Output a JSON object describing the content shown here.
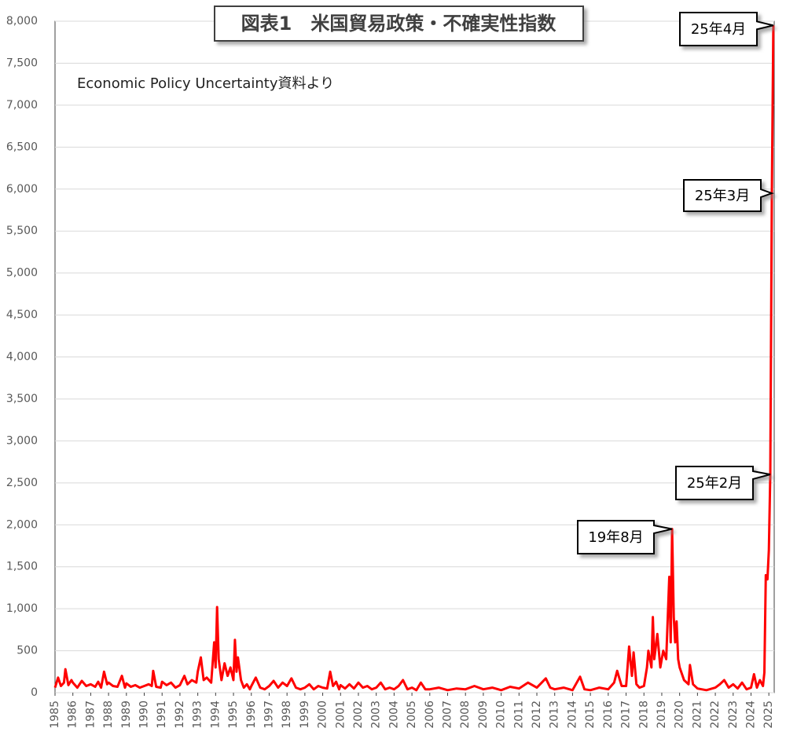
{
  "chart_data": {
    "type": "line",
    "title": "図表1　米国貿易政策・不確実性指数",
    "subtitle": "Economic Policy Uncertainty資料より",
    "xlim": [
      1985,
      2025.3
    ],
    "xticks": [
      1985,
      1986,
      1987,
      1988,
      1989,
      1990,
      1991,
      1992,
      1993,
      1994,
      1995,
      1996,
      1997,
      1998,
      1999,
      2000,
      2001,
      2002,
      2003,
      2004,
      2005,
      2006,
      2007,
      2008,
      2009,
      2010,
      2011,
      2012,
      2013,
      2014,
      2015,
      2016,
      2017,
      2018,
      2019,
      2020,
      2021,
      2022,
      2023,
      2024,
      2025
    ],
    "ylim": [
      0,
      8000
    ],
    "yticks": [
      0,
      500,
      {
        "value": 1000,
        "label": "1,000"
      },
      {
        "value": 1500,
        "label": "1,500"
      },
      {
        "value": 2000,
        "label": "2,000"
      },
      {
        "value": 2500,
        "label": "2,500"
      },
      {
        "value": 3000,
        "label": "3,000"
      },
      {
        "value": 3500,
        "label": "3,500"
      },
      {
        "value": 4000,
        "label": "4,000"
      },
      {
        "value": 4500,
        "label": "4,500"
      },
      {
        "value": 5000,
        "label": "5,000"
      },
      {
        "value": 5500,
        "label": "5,500"
      },
      {
        "value": 6000,
        "label": "6,000"
      },
      {
        "value": 6500,
        "label": "6,500"
      },
      {
        "value": 7000,
        "label": "7,000"
      },
      {
        "value": 7500,
        "label": "7,500"
      },
      {
        "value": 8000,
        "label": "8,000"
      }
    ],
    "grid": true,
    "series": [
      {
        "color": "#ff0000",
        "x": [
          1985.0,
          1985.17,
          1985.33,
          1985.5,
          1985.58,
          1985.75,
          1985.92,
          1986.0,
          1986.25,
          1986.5,
          1986.75,
          1987.0,
          1987.25,
          1987.42,
          1987.58,
          1987.75,
          1987.92,
          1988.0,
          1988.25,
          1988.5,
          1988.75,
          1988.92,
          1989.0,
          1989.25,
          1989.5,
          1989.75,
          1990.0,
          1990.25,
          1990.42,
          1990.5,
          1990.67,
          1990.92,
          1991.0,
          1991.25,
          1991.5,
          1991.75,
          1992.0,
          1992.25,
          1992.42,
          1992.67,
          1992.92,
          1993.0,
          1993.17,
          1993.33,
          1993.5,
          1993.75,
          1993.92,
          1994.0,
          1994.08,
          1994.17,
          1994.33,
          1994.5,
          1994.67,
          1994.83,
          1995.0,
          1995.08,
          1995.17,
          1995.25,
          1995.42,
          1995.58,
          1995.75,
          1995.92,
          1996.0,
          1996.25,
          1996.5,
          1996.75,
          1997.0,
          1997.25,
          1997.5,
          1997.75,
          1998.0,
          1998.25,
          1998.5,
          1998.75,
          1999.0,
          1999.25,
          1999.5,
          1999.75,
          2000.0,
          2000.25,
          2000.42,
          2000.58,
          2000.75,
          2000.92,
          2001.0,
          2001.25,
          2001.5,
          2001.75,
          2002.0,
          2002.25,
          2002.5,
          2002.75,
          2003.0,
          2003.25,
          2003.5,
          2003.75,
          2004.0,
          2004.25,
          2004.5,
          2004.75,
          2005.0,
          2005.25,
          2005.5,
          2005.75,
          2006.0,
          2006.5,
          2007.0,
          2007.5,
          2008.0,
          2008.5,
          2009.0,
          2009.5,
          2010.0,
          2010.5,
          2011.0,
          2011.5,
          2012.0,
          2012.5,
          2012.75,
          2013.0,
          2013.5,
          2014.0,
          2014.42,
          2014.67,
          2015.0,
          2015.5,
          2016.0,
          2016.33,
          2016.5,
          2016.75,
          2017.0,
          2017.17,
          2017.33,
          2017.42,
          2017.58,
          2017.75,
          2018.0,
          2018.17,
          2018.25,
          2018.42,
          2018.5,
          2018.58,
          2018.75,
          2018.92,
          2019.08,
          2019.25,
          2019.42,
          2019.5,
          2019.58,
          2019.67,
          2019.75,
          2019.83,
          2019.92,
          2020.0,
          2020.25,
          2020.5,
          2020.58,
          2020.75,
          2021.0,
          2021.5,
          2022.0,
          2022.25,
          2022.5,
          2022.75,
          2023.0,
          2023.25,
          2023.5,
          2023.75,
          2024.0,
          2024.17,
          2024.33,
          2024.5,
          2024.67,
          2024.75,
          2024.83,
          2024.92,
          2025.0,
          2025.08,
          2025.17,
          2025.25
        ],
        "values": [
          60,
          180,
          80,
          120,
          280,
          90,
          150,
          120,
          60,
          140,
          80,
          100,
          70,
          130,
          60,
          250,
          100,
          120,
          80,
          70,
          200,
          60,
          110,
          70,
          90,
          60,
          80,
          100,
          80,
          260,
          70,
          60,
          130,
          90,
          120,
          60,
          90,
          200,
          100,
          150,
          120,
          250,
          420,
          150,
          180,
          120,
          600,
          300,
          1020,
          400,
          150,
          350,
          200,
          300,
          150,
          630,
          250,
          420,
          150,
          60,
          100,
          40,
          80,
          180,
          60,
          40,
          80,
          140,
          60,
          120,
          80,
          170,
          60,
          40,
          60,
          100,
          40,
          80,
          60,
          50,
          250,
          80,
          130,
          40,
          90,
          50,
          100,
          50,
          120,
          60,
          80,
          40,
          60,
          120,
          40,
          60,
          40,
          80,
          150,
          40,
          60,
          30,
          120,
          40,
          40,
          60,
          30,
          50,
          40,
          80,
          40,
          60,
          30,
          70,
          50,
          120,
          60,
          170,
          60,
          40,
          60,
          30,
          190,
          40,
          30,
          60,
          40,
          120,
          260,
          80,
          80,
          550,
          200,
          480,
          100,
          60,
          80,
          300,
          500,
          300,
          900,
          400,
          700,
          300,
          500,
          400,
          1380,
          600,
          1950,
          900,
          600,
          850,
          400,
          300,
          150,
          100,
          330,
          100,
          50,
          30,
          60,
          100,
          150,
          60,
          100,
          50,
          120,
          40,
          60,
          220,
          60,
          150,
          80,
          240,
          1400,
          1350,
          1700,
          2600,
          5950,
          7950
        ]
      }
    ],
    "annotations": [
      {
        "text": "25年4月",
        "x": 2025.25,
        "y": 7950
      },
      {
        "text": "25年3月",
        "x": 2025.17,
        "y": 5950
      },
      {
        "text": "25年2月",
        "x": 2025.08,
        "y": 2600
      },
      {
        "text": "19年8月",
        "x": 2019.58,
        "y": 1950
      }
    ]
  }
}
